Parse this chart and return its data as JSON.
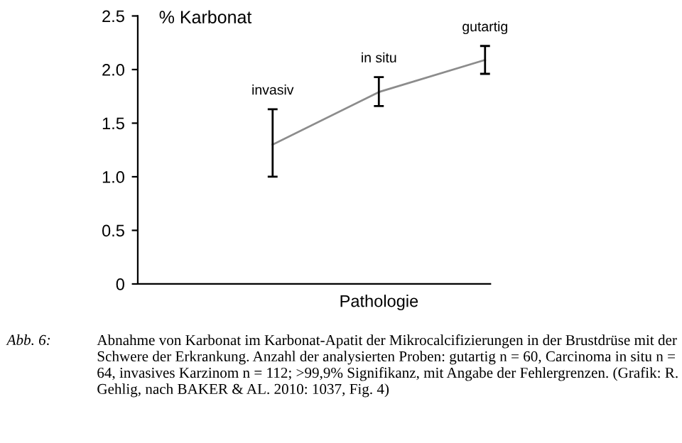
{
  "chart_data": {
    "type": "line",
    "ylabel": "% Karbonat",
    "xlabel": "Pathologie",
    "categories": [
      "invasiv",
      "in situ",
      "gutartig"
    ],
    "series": [
      {
        "color": "#8c8c8c",
        "values": [
          1.3,
          1.79,
          2.09
        ],
        "errors": [
          [
            1.0,
            1.63
          ],
          [
            1.66,
            1.93
          ],
          [
            1.96,
            2.22
          ]
        ]
      }
    ],
    "ylim": [
      0,
      2.5
    ],
    "yticks": [
      0,
      {
        "value": 0.5,
        "label": "0.5"
      },
      {
        "value": 1.0,
        "label": "1.0"
      },
      {
        "value": 1.5,
        "label": "1.5"
      },
      {
        "value": 2.0,
        "label": "2.0"
      },
      {
        "value": 2.5,
        "label": "2.5"
      }
    ],
    "tick_labels": "y",
    "grid": false,
    "legend": false,
    "marker": "none",
    "line_style": "solid",
    "annotations": [
      "Abb. 6:",
      "Abnahme von Karbonat im Karbonat-Apatit der Mikrocalcifizierungen in der Brustdrüse mit der Schwere der Erkrankung. Anzahl der analysierten Proben: gutartig n = 60, Carcinoma in situ n = 64, invasives Karzinom n = 112; >99,9% Signifikanz, mit Angabe der Fehlergrenzen. (Grafik: R. Gehlig, nach BAKER & AL. 2010: 1037, Fig. 4)"
    ]
  }
}
